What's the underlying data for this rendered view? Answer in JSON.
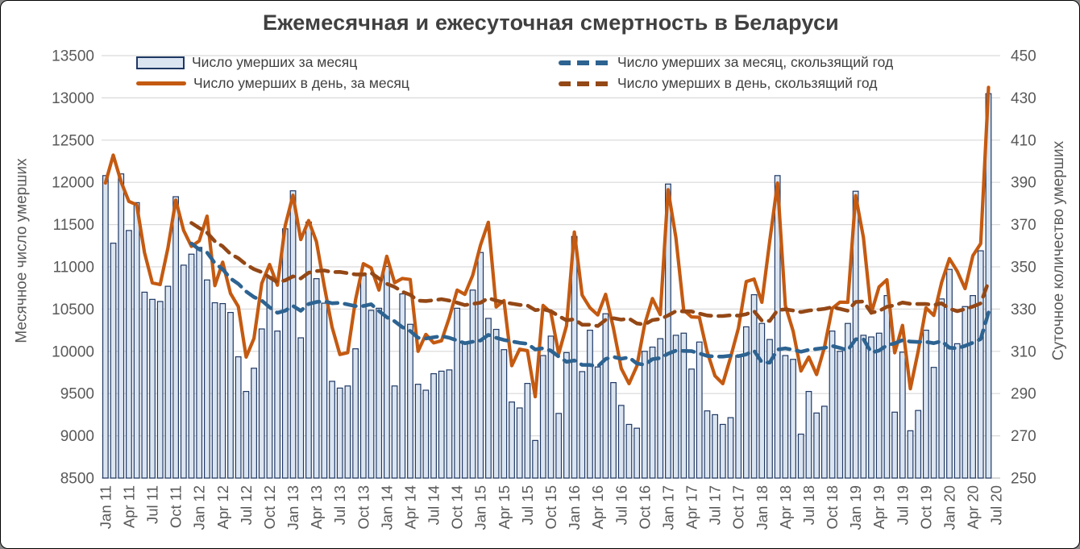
{
  "title": "Ежемесячная и ежесуточная смертность в Беларуси",
  "legend": {
    "bar_label": "Число умерших за месяц",
    "daily_label": "Число умерших в день, за месяц",
    "rolling_month_label": "Число умерших за месяц, скользящий год",
    "rolling_daily_label": "Число умерших в день, скользящий год"
  },
  "colors": {
    "bar_fill": "#dbe5f1",
    "bar_stroke": "#1f3864",
    "daily_line": "#c45a11",
    "rolling_month_line": "#2d6391",
    "rolling_daily_line": "#944816",
    "grid": "#d9d9d9",
    "axis_line": "#bfbfbf",
    "tick_text": "#595959",
    "title_text": "#404040"
  },
  "chart_data": {
    "type": "bar",
    "subtype": "combo-bar-line-dual-axis",
    "title": "Ежемесячная и ежесуточная смертность в Беларуси",
    "x_start": "Jan 2011",
    "x_end": "Jun 2020",
    "x_slots": 115,
    "grid": true,
    "legend_position": "top",
    "x_tick_labels": [
      "Jan 11",
      "Apr 11",
      "Jul 11",
      "Oct 11",
      "Jan 12",
      "Apr 12",
      "Jul 12",
      "Oct 12",
      "Jan 13",
      "Apr 13",
      "Jul 13",
      "Oct 13",
      "Jan 14",
      "Apr 14",
      "Jul 14",
      "Oct 14",
      "Jan 15",
      "Apr 15",
      "Jul 15",
      "Oct 15",
      "Jan 16",
      "Apr 16",
      "Jul 16",
      "Oct 16",
      "Jan 17",
      "Apr 17",
      "Jul 17",
      "Oct 17",
      "Jan 18",
      "Apr 18",
      "Jul 18",
      "Oct 18",
      "Jan 19",
      "Apr 19",
      "Jul 19",
      "Oct 19",
      "Jan 20",
      "Apr 20",
      "Jul 20"
    ],
    "y_left": {
      "label": "Месячное число умерших",
      "min": 8500,
      "max": 13500,
      "step": 500
    },
    "y_right": {
      "label": "Суточное количество умерших",
      "min": 250,
      "max": 450,
      "step": 20
    },
    "series": [
      {
        "name": "Число умерших за месяц",
        "type": "bar",
        "axis": "left",
        "start_index": 0,
        "values": [
          12080,
          11280,
          12100,
          11430,
          11760,
          10700,
          10615,
          10590,
          10770,
          11830,
          11020,
          11150,
          11230,
          10845,
          10575,
          10565,
          10460,
          9935,
          9525,
          9800,
          10265,
          10885,
          10240,
          11450,
          11900,
          10160,
          11530,
          10860,
          10570,
          9645,
          9565,
          9590,
          10030,
          10895,
          10485,
          10510,
          11005,
          9590,
          10680,
          10320,
          9610,
          9540,
          9735,
          9765,
          9780,
          10510,
          10110,
          10725,
          11170,
          10390,
          10260,
          10020,
          9400,
          9330,
          9620,
          8945,
          9950,
          10180,
          9265,
          9985,
          11360,
          9760,
          10250,
          9815,
          10445,
          9630,
          9360,
          9135,
          9090,
          10000,
          10050,
          10150,
          11980,
          10190,
          10215,
          9790,
          10110,
          9295,
          9250,
          9135,
          9215,
          9950,
          10290,
          10670,
          10330,
          10140,
          12080,
          9950,
          9905,
          9020,
          9525,
          9270,
          9350,
          10240,
          10000,
          10330,
          11895,
          10190,
          10170,
          10215,
          10660,
          9280,
          9990,
          9060,
          9300,
          10250,
          9810,
          10620,
          10970,
          10090,
          10530,
          10660,
          11190,
          13050
        ]
      },
      {
        "name": "Число умерших в день, за месяц",
        "type": "line",
        "axis": "right",
        "start_index": 0,
        "values": [
          389.7,
          402.9,
          390.3,
          381.0,
          379.4,
          356.7,
          342.4,
          341.6,
          359.0,
          381.6,
          367.3,
          359.7,
          362.3,
          374.0,
          341.1,
          352.2,
          337.4,
          331.2,
          307.3,
          316.1,
          342.2,
          351.1,
          341.3,
          369.4,
          383.9,
          362.9,
          371.9,
          362.0,
          341.0,
          321.5,
          308.5,
          309.4,
          334.3,
          351.5,
          349.5,
          339.0,
          355.0,
          342.5,
          344.5,
          344.0,
          310.0,
          318.0,
          314.0,
          315.0,
          326.0,
          339.0,
          337.0,
          346.0,
          360.3,
          371.1,
          331.0,
          334.0,
          303.2,
          311.0,
          310.3,
          288.5,
          331.7,
          328.4,
          308.8,
          322.1,
          366.5,
          336.6,
          330.6,
          327.2,
          337.0,
          321.0,
          301.9,
          294.7,
          303.0,
          322.6,
          335.0,
          327.4,
          386.5,
          363.9,
          329.5,
          326.3,
          326.1,
          309.8,
          298.4,
          294.7,
          307.2,
          321.0,
          343.0,
          344.2,
          333.2,
          362.1,
          389.7,
          331.7,
          319.5,
          300.7,
          307.3,
          299.0,
          311.7,
          330.3,
          333.3,
          333.2,
          383.7,
          363.9,
          328.1,
          340.5,
          343.9,
          309.3,
          322.3,
          292.3,
          310.0,
          330.6,
          327.0,
          342.6,
          353.9,
          347.9,
          339.7,
          355.3,
          361.0,
          435.0
        ]
      },
      {
        "name": "Число умерших за месяц, скользящий год",
        "type": "dashed-line",
        "axis": "left",
        "start_index": 11,
        "values": [
          11277,
          11206,
          11170,
          11043,
          10971,
          10863,
          10799,
          10708,
          10642,
          10600,
          10521,
          10456,
          10481,
          10537,
          10480,
          10560,
          10584,
          10593,
          10569,
          10573,
          10555,
          10535,
          10536,
          10557,
          10478,
          10404,
          10356,
          10285,
          10240,
          10160,
          10152,
          10166,
          10180,
          10160,
          10128,
          10096,
          10114,
          10128,
          10195,
          10160,
          10135,
          10117,
          10100,
          10090,
          10022,
          10036,
          10008,
          9938,
          9876,
          9892,
          9840,
          9839,
          9822,
          9909,
          9934,
          9912,
          9928,
          9856,
          9841,
          9907,
          9920,
          9972,
          10008,
          10005,
          10003,
          9975,
          9947,
          9938,
          9938,
          9948,
          9944,
          9964,
          10008,
          9870,
          9866,
          10021,
          10035,
          10018,
          9995,
          10018,
          10029,
          10040,
          10064,
          10040,
          10012,
          10142,
          10146,
          9987,
          10009,
          10072,
          10094,
          10133,
          10115,
          10111,
          10112,
          10096,
          10120,
          10043,
          10035,
          10065,
          10102,
          10146,
          10460
        ]
      },
      {
        "name": "Число умерших в день, скользящий год",
        "type": "dashed-line",
        "axis": "right",
        "start_index": 11,
        "values": [
          370.8,
          368.4,
          366.2,
          362.1,
          359.7,
          356.1,
          354.1,
          351.1,
          348.9,
          347.5,
          345.0,
          342.8,
          343.6,
          345.5,
          344.5,
          347.2,
          348.0,
          348.3,
          347.5,
          347.6,
          347.0,
          346.4,
          346.4,
          347.1,
          344.5,
          342.0,
          340.5,
          338.2,
          336.7,
          334.0,
          333.8,
          334.2,
          334.7,
          334.0,
          333.0,
          331.9,
          332.5,
          333.0,
          335.2,
          334.0,
          333.2,
          332.6,
          332.0,
          331.7,
          329.5,
          329.9,
          329.0,
          326.7,
          324.7,
          325.2,
          322.6,
          322.6,
          322.0,
          324.9,
          325.7,
          325.0,
          325.5,
          323.2,
          322.7,
          324.8,
          325.3,
          327.0,
          329.0,
          328.9,
          328.9,
          327.9,
          327.0,
          326.7,
          326.7,
          327.1,
          326.9,
          327.6,
          329.0,
          324.5,
          324.4,
          329.5,
          329.9,
          329.3,
          328.6,
          329.3,
          329.7,
          330.1,
          330.9,
          330.1,
          329.2,
          333.4,
          333.6,
          328.3,
          329.1,
          331.1,
          331.8,
          333.1,
          332.5,
          332.4,
          332.4,
          331.9,
          332.7,
          330.2,
          329.0,
          330.0,
          331.2,
          332.7,
          343.0
        ]
      }
    ]
  }
}
